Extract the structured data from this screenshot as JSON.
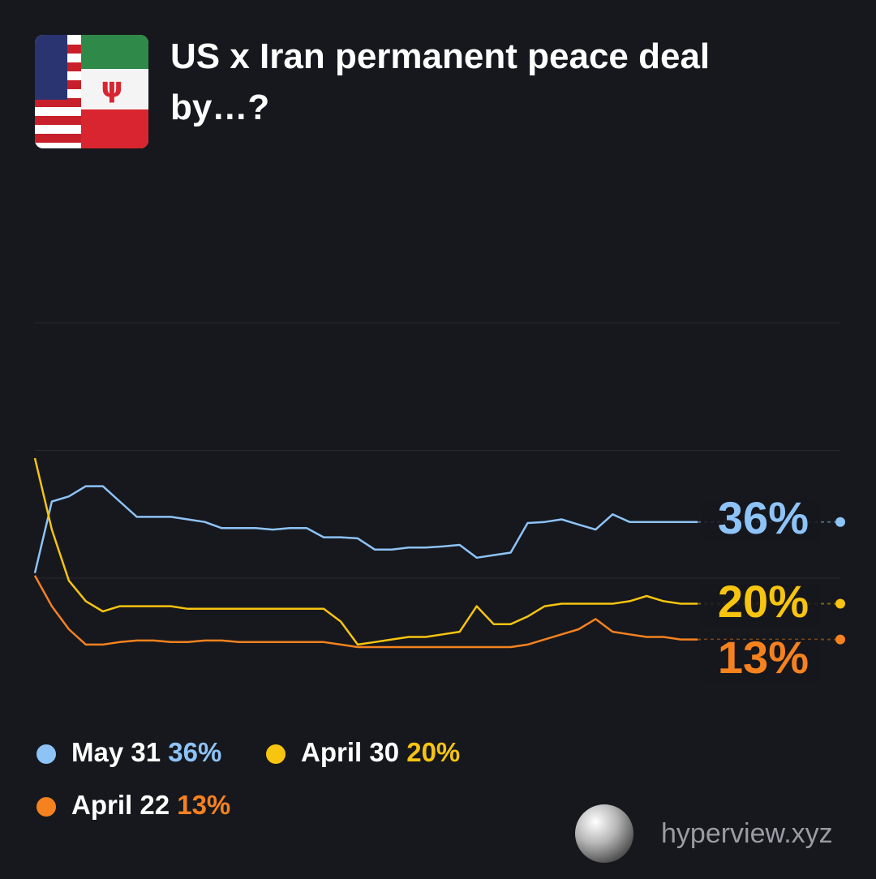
{
  "chart_data": {
    "type": "line",
    "title": "US x Iran permanent peace deal by…?",
    "ylim": [
      0,
      100
    ],
    "yticks": [
      25,
      50,
      75
    ],
    "grid": true,
    "series": [
      {
        "name": "May 31",
        "color": "#8ec3f7",
        "label": "36%",
        "values": [
          26,
          40,
          41,
          43,
          43,
          40,
          37,
          37,
          37,
          36.5,
          36,
          34.8,
          34.8,
          34.8,
          34.5,
          34.8,
          34.8,
          33,
          33,
          32.8,
          30.6,
          30.6,
          31,
          31,
          31.2,
          31.5,
          29,
          29.5,
          30,
          35.8,
          36,
          36.5,
          35.5,
          34.5,
          37.5,
          36,
          36,
          36,
          36,
          36
        ]
      },
      {
        "name": "April 30",
        "color": "#f7c40f",
        "label": "20%",
        "values": [
          48.5,
          34.5,
          24.5,
          20.5,
          18.5,
          19.5,
          19.5,
          19.5,
          19.5,
          19,
          19,
          19,
          19,
          19,
          19,
          19,
          19,
          19,
          16.5,
          12,
          12.5,
          13,
          13.5,
          13.5,
          14,
          14.5,
          19.5,
          16,
          16,
          17.5,
          19.5,
          20,
          20,
          20,
          20,
          20.5,
          21.5,
          20.5,
          20,
          20
        ]
      },
      {
        "name": "April 22",
        "color": "#f5821f",
        "label": "13%",
        "values": [
          25.5,
          19.5,
          15,
          12,
          12,
          12.5,
          12.8,
          12.8,
          12.5,
          12.5,
          12.8,
          12.8,
          12.5,
          12.5,
          12.5,
          12.5,
          12.5,
          12.5,
          12,
          11.5,
          11.5,
          11.5,
          11.5,
          11.5,
          11.5,
          11.5,
          11.5,
          11.5,
          11.5,
          12,
          13,
          14,
          15,
          17,
          14.5,
          14,
          13.5,
          13.5,
          13,
          13
        ]
      }
    ],
    "watermark": "hyperview.xyz"
  }
}
